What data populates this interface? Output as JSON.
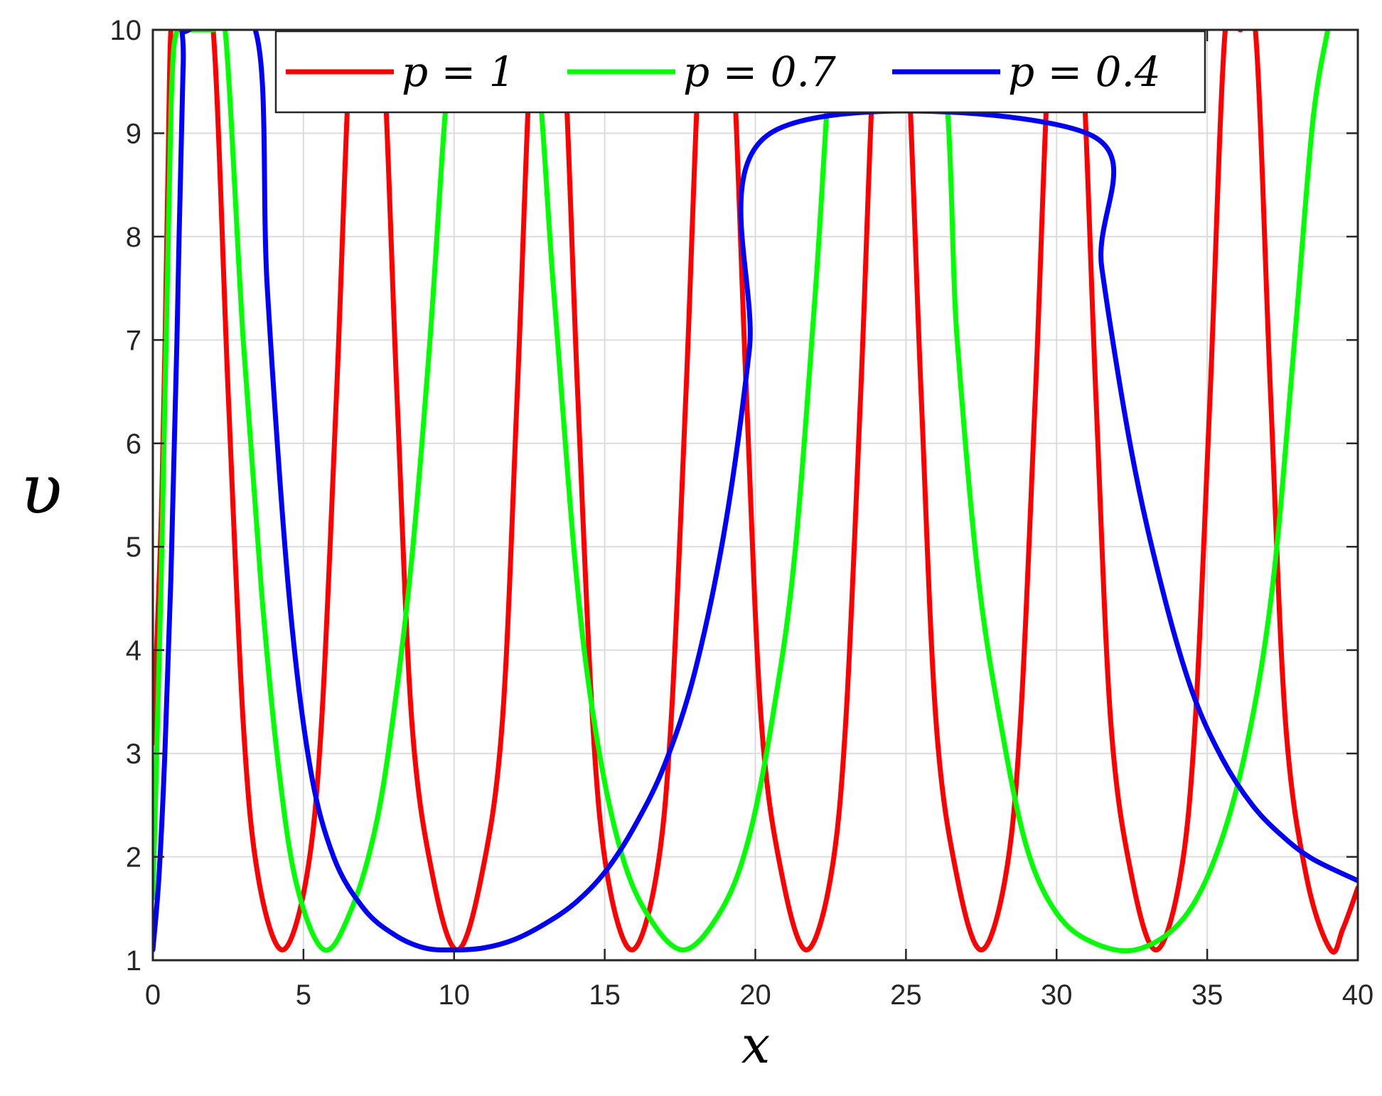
{
  "chart_data": {
    "type": "line",
    "xlabel": "x",
    "ylabel": "υ",
    "xlim": [
      0,
      40
    ],
    "ylim": [
      1,
      10
    ],
    "xticks": [
      0,
      5,
      10,
      15,
      20,
      25,
      30,
      35,
      40
    ],
    "yticks": [
      1,
      2,
      3,
      4,
      5,
      6,
      7,
      8,
      9,
      10
    ],
    "grid": true,
    "legend_position": "top",
    "series": [
      {
        "name": "p = 1",
        "color": "#ff0000",
        "period": 5.8,
        "min_x": [
          4.3,
          10.1,
          15.9,
          21.7,
          27.5,
          33.3,
          39.1
        ],
        "x": [
          0.0,
          0.3,
          0.5,
          0.6,
          0.8,
          1.0,
          1.5,
          2.0,
          2.5,
          3.0,
          3.5,
          4.3,
          5.1,
          5.6,
          6.1,
          6.6,
          7.1,
          7.6,
          8.1,
          8.6,
          9.3,
          10.1,
          10.9,
          11.6,
          12.1,
          12.6,
          13.1,
          13.6,
          14.1,
          14.6,
          15.1,
          15.9,
          16.7,
          17.2,
          17.7,
          18.2,
          18.7,
          19.2,
          19.7,
          20.2,
          20.9,
          21.7,
          22.5,
          23.0,
          23.5,
          24.0,
          24.5,
          25.0,
          25.5,
          26.0,
          26.7,
          27.5,
          28.3,
          28.8,
          29.3,
          29.8,
          30.3,
          30.8,
          31.3,
          31.8,
          32.5,
          33.3,
          34.1,
          34.6,
          35.1,
          35.6,
          36.1,
          36.6,
          37.1,
          37.6,
          38.3,
          39.1,
          39.5,
          40.0
        ],
        "values": [
          3.1,
          5.5,
          8.6,
          10.0,
          10.0,
          10.0,
          10.0,
          10.0,
          6.5,
          3.3,
          1.8,
          1.1,
          1.8,
          3.3,
          6.5,
          10.0,
          10.0,
          10.0,
          6.5,
          3.3,
          1.8,
          1.1,
          1.8,
          3.3,
          6.5,
          10.0,
          10.0,
          10.0,
          6.5,
          3.3,
          1.8,
          1.1,
          1.8,
          3.3,
          6.5,
          10.0,
          10.0,
          10.0,
          6.5,
          3.3,
          1.8,
          1.1,
          1.8,
          3.3,
          6.5,
          10.0,
          10.0,
          10.0,
          6.5,
          3.3,
          1.8,
          1.1,
          1.8,
          3.3,
          6.5,
          10.0,
          10.0,
          10.0,
          6.5,
          3.3,
          1.8,
          1.1,
          1.8,
          3.3,
          6.5,
          10.0,
          10.0,
          10.0,
          6.5,
          3.3,
          1.8,
          1.1,
          1.3,
          1.7
        ]
      },
      {
        "name": "p = 0.7",
        "color": "#00ff00",
        "period": 11.95,
        "min_x": [
          5.7,
          17.6,
          32.6
        ],
        "x": [
          0.0,
          0.3,
          0.6,
          0.8,
          1.0,
          2.0,
          2.4,
          3.0,
          3.6,
          4.2,
          4.8,
          5.7,
          6.6,
          7.4,
          8.0,
          8.6,
          9.2,
          9.8,
          10.3,
          11.5,
          12.6,
          13.3,
          14.0,
          14.6,
          15.4,
          16.3,
          17.6,
          18.9,
          19.8,
          20.6,
          21.3,
          22.0,
          22.6,
          23.2,
          26.0,
          26.7,
          27.4,
          28.2,
          29.0,
          29.9,
          31.0,
          32.6,
          34.2,
          35.4,
          36.4,
          37.2,
          37.9,
          38.5,
          39.0
        ],
        "values": [
          1.6,
          5.0,
          9.2,
          10.0,
          10.0,
          10.0,
          10.0,
          7.0,
          4.6,
          2.8,
          1.7,
          1.1,
          1.5,
          2.3,
          3.4,
          4.9,
          7.0,
          9.5,
          10.0,
          10.0,
          10.0,
          7.5,
          4.9,
          3.4,
          2.2,
          1.5,
          1.1,
          1.5,
          2.2,
          3.4,
          4.9,
          7.5,
          10.0,
          10.0,
          10.0,
          7.0,
          4.7,
          3.2,
          2.1,
          1.5,
          1.2,
          1.1,
          1.4,
          2.1,
          3.2,
          4.7,
          7.0,
          9.1,
          10.0
        ]
      },
      {
        "name": "p = 0.4",
        "color": "#0000ff",
        "period": 22.9,
        "min_x": [
          0.0,
          10.0
        ],
        "x": [
          0.0,
          0.2,
          0.4,
          0.6,
          0.8,
          1.0,
          1.2,
          3.4,
          3.8,
          4.5,
          5.2,
          6.0,
          7.0,
          8.0,
          9.0,
          10.0,
          11.0,
          12.0,
          13.0,
          14.0,
          15.0,
          16.0,
          17.0,
          18.0,
          19.0,
          19.8,
          20.5,
          31.0,
          31.5,
          32.5,
          33.5,
          34.5,
          35.5,
          36.5,
          37.5,
          38.5,
          40.0
        ],
        "values": [
          1.1,
          1.8,
          3.0,
          4.7,
          7.0,
          9.6,
          10.0,
          10.0,
          7.5,
          4.6,
          2.9,
          2.0,
          1.5,
          1.25,
          1.12,
          1.1,
          1.12,
          1.2,
          1.35,
          1.55,
          1.85,
          2.3,
          2.9,
          3.8,
          5.2,
          6.9,
          9.0,
          9.0,
          7.7,
          5.9,
          4.6,
          3.6,
          2.95,
          2.5,
          2.2,
          1.98,
          1.77
        ]
      }
    ]
  }
}
